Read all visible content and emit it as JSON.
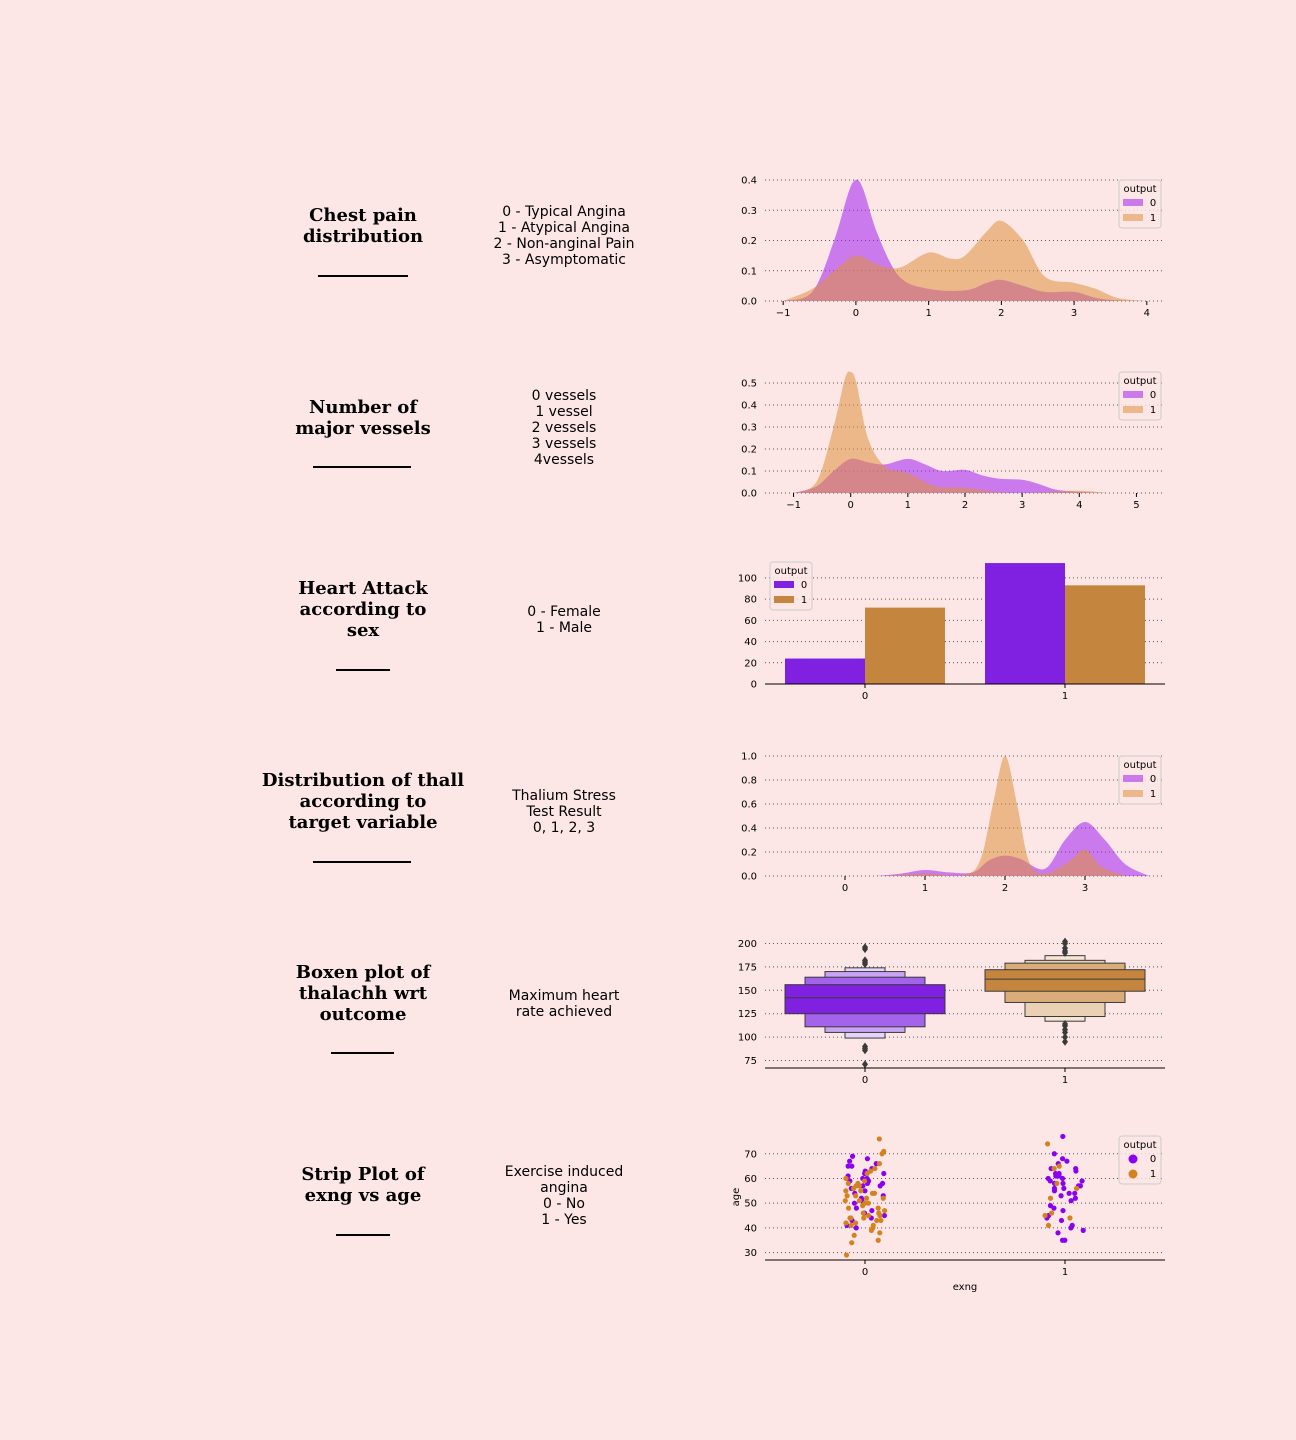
{
  "colors": {
    "background": "#fde6e6",
    "output0_kde": "#a020f0",
    "output1_kde": "#de8f3d",
    "output0_solid": "#8020e0",
    "output1_solid": "#c4863e"
  },
  "rows": [
    {
      "title": "Chest pain\ndistribution",
      "desc": "0 - Typical Angina\n1 - Atypical Angina\n2 - Non-anginal Pain\n3 - Asymptomatic"
    },
    {
      "title": "Number of\nmajor vessels",
      "desc": "0 vessels\n1 vessel\n2 vessels\n3 vessels\n4vessels"
    },
    {
      "title": "Heart Attack\naccording to\nsex",
      "desc": "0 - Female\n1 - Male"
    },
    {
      "title": "Distribution of thall\naccording to\ntarget variable",
      "desc": "Thalium Stress\nTest Result\n0, 1, 2, 3"
    },
    {
      "title": "Boxen plot of\nthalachh wrt\noutcome",
      "desc": "Maximum heart\nrate achieved"
    },
    {
      "title": "Strip Plot of\nexng vs age",
      "desc": "Exercise induced\nangina\n0 - No\n1 - Yes"
    }
  ],
  "chart_data": [
    {
      "type": "area",
      "xlim": [
        -1.25,
        4.25
      ],
      "ylim": [
        0,
        0.4
      ],
      "xticks": [
        -1,
        0,
        1,
        2,
        3,
        4
      ],
      "yticks": [
        0.0,
        0.1,
        0.2,
        0.3,
        0.4
      ],
      "grid": "y-dotted",
      "legend_title": "output",
      "legend_position": "top-right",
      "series": [
        {
          "name": "0",
          "x": [
            -1,
            -0.6,
            -0.3,
            -0.1,
            0,
            0.1,
            0.3,
            0.6,
            1,
            1.5,
            1.8,
            2,
            2.3,
            2.6,
            3,
            3.3,
            3.6,
            4
          ],
          "y": [
            0,
            0.03,
            0.2,
            0.36,
            0.4,
            0.37,
            0.22,
            0.08,
            0.04,
            0.035,
            0.06,
            0.07,
            0.05,
            0.03,
            0.03,
            0.01,
            0.002,
            0
          ]
        },
        {
          "name": "1",
          "x": [
            -1,
            -0.6,
            -0.3,
            0,
            0.3,
            0.6,
            1,
            1.3,
            1.5,
            1.8,
            2,
            2.3,
            2.6,
            3,
            3.3,
            3.6,
            4
          ],
          "y": [
            0,
            0.04,
            0.1,
            0.15,
            0.12,
            0.11,
            0.16,
            0.14,
            0.15,
            0.23,
            0.265,
            0.2,
            0.08,
            0.06,
            0.04,
            0.01,
            0
          ]
        }
      ]
    },
    {
      "type": "area",
      "xlim": [
        -1.5,
        5.5
      ],
      "ylim": [
        0,
        0.55
      ],
      "xticks": [
        -1,
        0,
        1,
        2,
        3,
        4,
        5
      ],
      "yticks": [
        0.0,
        0.1,
        0.2,
        0.3,
        0.4,
        0.5
      ],
      "grid": "y-dotted",
      "legend_title": "output",
      "legend_position": "top-right",
      "series": [
        {
          "name": "0",
          "x": [
            -1,
            -0.6,
            -0.3,
            0,
            0.3,
            0.6,
            1,
            1.3,
            1.6,
            2,
            2.3,
            2.6,
            3,
            3.3,
            3.6,
            4,
            4.5
          ],
          "y": [
            0,
            0.03,
            0.1,
            0.155,
            0.14,
            0.13,
            0.155,
            0.13,
            0.1,
            0.105,
            0.08,
            0.065,
            0.06,
            0.04,
            0.015,
            0.005,
            0
          ]
        },
        {
          "name": "1",
          "x": [
            -1,
            -0.6,
            -0.3,
            -0.1,
            0,
            0.1,
            0.3,
            0.6,
            1,
            1.5,
            2,
            2.5,
            3,
            3.5,
            4,
            4.5
          ],
          "y": [
            0,
            0.05,
            0.3,
            0.52,
            0.55,
            0.5,
            0.25,
            0.12,
            0.09,
            0.03,
            0.025,
            0.005,
            0,
            0.005,
            0.01,
            0
          ]
        }
      ]
    },
    {
      "type": "bar",
      "categories": [
        "0",
        "1"
      ],
      "ylim": [
        0,
        115
      ],
      "yticks": [
        0,
        20,
        40,
        60,
        80,
        100
      ],
      "grid": "y-dotted",
      "legend_title": "output",
      "legend_position": "top-left",
      "series": [
        {
          "name": "0",
          "values": [
            24,
            114
          ]
        },
        {
          "name": "1",
          "values": [
            72,
            93
          ]
        }
      ]
    },
    {
      "type": "area",
      "xlim": [
        -1,
        4
      ],
      "ylim": [
        0,
        1.0
      ],
      "xticks": [
        0,
        1,
        2,
        3
      ],
      "yticks": [
        0.0,
        0.2,
        0.4,
        0.6,
        0.8,
        1.0
      ],
      "grid": "y-dotted",
      "legend_title": "output",
      "legend_position": "top-right",
      "series": [
        {
          "name": "0",
          "x": [
            0.4,
            0.7,
            1,
            1.3,
            1.6,
            1.8,
            2,
            2.2,
            2.5,
            2.75,
            3,
            3.25,
            3.5,
            3.8
          ],
          "y": [
            0,
            0.02,
            0.05,
            0.03,
            0.03,
            0.13,
            0.17,
            0.14,
            0.06,
            0.3,
            0.45,
            0.3,
            0.1,
            0
          ]
        },
        {
          "name": "1",
          "x": [
            0.5,
            1,
            1.5,
            1.7,
            1.85,
            2,
            2.15,
            2.3,
            2.5,
            2.8,
            3,
            3.2,
            3.5
          ],
          "y": [
            0,
            0.02,
            0.01,
            0.15,
            0.6,
            1.0,
            0.6,
            0.12,
            0.02,
            0.12,
            0.22,
            0.08,
            0
          ]
        }
      ]
    },
    {
      "type": "boxen",
      "categories": [
        "0",
        "1"
      ],
      "ylim": [
        67,
        208
      ],
      "yticks": [
        75,
        100,
        125,
        150,
        175,
        200
      ],
      "grid": "y-dotted",
      "series": [
        {
          "name": "0",
          "median": 142,
          "levels": [
            [
              125,
              156
            ],
            [
              111,
              164
            ],
            [
              105,
              170
            ],
            [
              99,
              174
            ],
            [
              96,
              175
            ]
          ],
          "outliers": [
            71,
            86,
            88,
            90,
            178,
            180,
            182,
            194,
            196
          ]
        },
        {
          "name": "1",
          "median": 162,
          "levels": [
            [
              149,
              172
            ],
            [
              137,
              179
            ],
            [
              122,
              182
            ],
            [
              117,
              187
            ]
          ],
          "outliers": [
            95,
            100,
            105,
            108,
            112,
            114,
            190,
            192,
            195,
            200,
            202
          ]
        }
      ]
    },
    {
      "type": "scatter",
      "categories": [
        "0",
        "1"
      ],
      "ylim": [
        27,
        78
      ],
      "yticks": [
        30,
        40,
        50,
        60,
        70
      ],
      "xlabel": "exng",
      "ylabel": "age",
      "grid": "y-dotted",
      "legend_title": "output",
      "legend_position": "top-right",
      "series": [
        {
          "name": "0",
          "points": [
            [
              0,
              62
            ],
            [
              0,
              58
            ],
            [
              0,
              67
            ],
            [
              0,
              54
            ],
            [
              0,
              60
            ],
            [
              0,
              63
            ],
            [
              0,
              65
            ],
            [
              0,
              57
            ],
            [
              0,
              59
            ],
            [
              0,
              52
            ],
            [
              0,
              48
            ],
            [
              0,
              66
            ],
            [
              0,
              44
            ],
            [
              0,
              61
            ],
            [
              0,
              55
            ],
            [
              0,
              50
            ],
            [
              0,
              64
            ],
            [
              0,
              56
            ],
            [
              0,
              68
            ],
            [
              0,
              46
            ],
            [
              0,
              43
            ],
            [
              0,
              41
            ],
            [
              0,
              58
            ],
            [
              0,
              62
            ],
            [
              0,
              59
            ],
            [
              0,
              57
            ],
            [
              0,
              53
            ],
            [
              0,
              69
            ],
            [
              0,
              51
            ],
            [
              0,
              60
            ],
            [
              0,
              47
            ],
            [
              0,
              40
            ],
            [
              0,
              65
            ],
            [
              0,
              45
            ],
            [
              1,
              77
            ],
            [
              1,
              70
            ],
            [
              1,
              67
            ],
            [
              1,
              66
            ],
            [
              1,
              64
            ],
            [
              1,
              63
            ],
            [
              1,
              62
            ],
            [
              1,
              61
            ],
            [
              1,
              60
            ],
            [
              1,
              59
            ],
            [
              1,
              58
            ],
            [
              1,
              57
            ],
            [
              1,
              56
            ],
            [
              1,
              55
            ],
            [
              1,
              54
            ],
            [
              1,
              53
            ],
            [
              1,
              52
            ],
            [
              1,
              51
            ],
            [
              1,
              49
            ],
            [
              1,
              48
            ],
            [
              1,
              47
            ],
            [
              1,
              45
            ],
            [
              1,
              44
            ],
            [
              1,
              43
            ],
            [
              1,
              41
            ],
            [
              1,
              40
            ],
            [
              1,
              39
            ],
            [
              1,
              38
            ],
            [
              1,
              35
            ],
            [
              1,
              35
            ],
            [
              1,
              68
            ],
            [
              1,
              57
            ],
            [
              1,
              58
            ],
            [
              1,
              60
            ],
            [
              1,
              62
            ],
            [
              1,
              56
            ],
            [
              1,
              54
            ],
            [
              1,
              59
            ],
            [
              1,
              61
            ],
            [
              1,
              64
            ]
          ]
        },
        {
          "name": "1",
          "points": [
            [
              0,
              76
            ],
            [
              0,
              71
            ],
            [
              0,
              70
            ],
            [
              0,
              66
            ],
            [
              0,
              64
            ],
            [
              0,
              63
            ],
            [
              0,
              62
            ],
            [
              0,
              60
            ],
            [
              0,
              58
            ],
            [
              0,
              57
            ],
            [
              0,
              56
            ],
            [
              0,
              55
            ],
            [
              0,
              54
            ],
            [
              0,
              54
            ],
            [
              0,
              53
            ],
            [
              0,
              52
            ],
            [
              0,
              51
            ],
            [
              0,
              51
            ],
            [
              0,
              50
            ],
            [
              0,
              49
            ],
            [
              0,
              48
            ],
            [
              0,
              47
            ],
            [
              0,
              46
            ],
            [
              0,
              45
            ],
            [
              0,
              45
            ],
            [
              0,
              44
            ],
            [
              0,
              44
            ],
            [
              0,
              43
            ],
            [
              0,
              43
            ],
            [
              0,
              42
            ],
            [
              0,
              42
            ],
            [
              0,
              41
            ],
            [
              0,
              41
            ],
            [
              0,
              40
            ],
            [
              0,
              39
            ],
            [
              0,
              38
            ],
            [
              0,
              37
            ],
            [
              0,
              35
            ],
            [
              0,
              34
            ],
            [
              0,
              29
            ],
            [
              0,
              58
            ],
            [
              0,
              55
            ],
            [
              0,
              52
            ],
            [
              0,
              48
            ],
            [
              0,
              46
            ],
            [
              0,
              44
            ],
            [
              0,
              50
            ],
            [
              0,
              53
            ],
            [
              0,
              57
            ],
            [
              0,
              59
            ],
            [
              1,
              74
            ],
            [
              1,
              65
            ],
            [
              1,
              64
            ],
            [
              1,
              58
            ],
            [
              1,
              56
            ],
            [
              1,
              52
            ],
            [
              1,
              46
            ],
            [
              1,
              45
            ],
            [
              1,
              44
            ],
            [
              1,
              41
            ]
          ]
        }
      ]
    }
  ]
}
